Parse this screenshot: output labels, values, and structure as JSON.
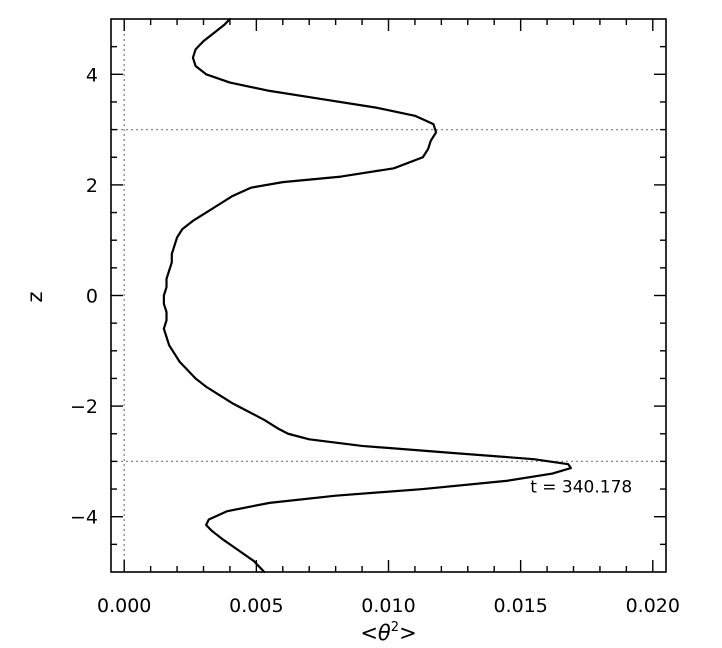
{
  "chart_data": {
    "type": "line",
    "xlabel": "<θ²>",
    "xlabel_parts": {
      "left": "<",
      "symbol": "θ",
      "sup": "2",
      "right": ">"
    },
    "ylabel": "z",
    "xlim": [
      -0.0005,
      0.0205
    ],
    "ylim": [
      -5,
      5
    ],
    "x_ticks": [
      0.0,
      0.005,
      0.01,
      0.015,
      0.02
    ],
    "x_tick_labels": [
      "0.000",
      "0.005",
      "0.010",
      "0.015",
      "0.020"
    ],
    "y_ticks": [
      -4,
      -2,
      0,
      2,
      4
    ],
    "y_tick_labels": [
      "−4",
      "−2",
      "0",
      "2",
      "4"
    ],
    "x_minor_step": 0.001,
    "y_minor_step": 0.5,
    "reference_lines": {
      "horizontal": [
        3,
        -3
      ],
      "vertical": [
        0
      ],
      "style": "dotted",
      "color": "#888888"
    },
    "annotation": {
      "text": "t = 340.178",
      "x": 0.0168,
      "y": -3.45
    },
    "grid": false,
    "series": [
      {
        "color": "#000000",
        "points": [
          [
            0.0053,
            -5.0
          ],
          [
            0.0049,
            -4.8
          ],
          [
            0.0043,
            -4.6
          ],
          [
            0.0037,
            -4.4
          ],
          [
            0.0033,
            -4.25
          ],
          [
            0.0031,
            -4.15
          ],
          [
            0.0032,
            -4.05
          ],
          [
            0.0039,
            -3.9
          ],
          [
            0.0055,
            -3.75
          ],
          [
            0.008,
            -3.62
          ],
          [
            0.0113,
            -3.5
          ],
          [
            0.0145,
            -3.35
          ],
          [
            0.0162,
            -3.22
          ],
          [
            0.0169,
            -3.12
          ],
          [
            0.0168,
            -3.05
          ],
          [
            0.0155,
            -2.96
          ],
          [
            0.0125,
            -2.85
          ],
          [
            0.009,
            -2.72
          ],
          [
            0.007,
            -2.6
          ],
          [
            0.0062,
            -2.5
          ],
          [
            0.0058,
            -2.4
          ],
          [
            0.0053,
            -2.25
          ],
          [
            0.0047,
            -2.1
          ],
          [
            0.0041,
            -1.95
          ],
          [
            0.0036,
            -1.8
          ],
          [
            0.0031,
            -1.65
          ],
          [
            0.0027,
            -1.5
          ],
          [
            0.0024,
            -1.35
          ],
          [
            0.0021,
            -1.2
          ],
          [
            0.0019,
            -1.05
          ],
          [
            0.0017,
            -0.9
          ],
          [
            0.0016,
            -0.75
          ],
          [
            0.0015,
            -0.6
          ],
          [
            0.0016,
            -0.45
          ],
          [
            0.0016,
            -0.3
          ],
          [
            0.0015,
            -0.15
          ],
          [
            0.0015,
            0.0
          ],
          [
            0.0016,
            0.15
          ],
          [
            0.0016,
            0.3
          ],
          [
            0.0017,
            0.45
          ],
          [
            0.0018,
            0.6
          ],
          [
            0.0018,
            0.75
          ],
          [
            0.0019,
            0.9
          ],
          [
            0.002,
            1.05
          ],
          [
            0.0022,
            1.2
          ],
          [
            0.0026,
            1.35
          ],
          [
            0.0031,
            1.5
          ],
          [
            0.0036,
            1.65
          ],
          [
            0.0041,
            1.8
          ],
          [
            0.0048,
            1.95
          ],
          [
            0.006,
            2.05
          ],
          [
            0.0082,
            2.15
          ],
          [
            0.0102,
            2.3
          ],
          [
            0.0113,
            2.5
          ],
          [
            0.0115,
            2.65
          ],
          [
            0.0116,
            2.8
          ],
          [
            0.0118,
            2.95
          ],
          [
            0.0117,
            3.1
          ],
          [
            0.011,
            3.25
          ],
          [
            0.0095,
            3.4
          ],
          [
            0.0075,
            3.55
          ],
          [
            0.0055,
            3.7
          ],
          [
            0.004,
            3.85
          ],
          [
            0.0031,
            4.0
          ],
          [
            0.0027,
            4.15
          ],
          [
            0.0026,
            4.3
          ],
          [
            0.0027,
            4.45
          ],
          [
            0.003,
            4.6
          ],
          [
            0.0034,
            4.75
          ],
          [
            0.0038,
            4.9
          ],
          [
            0.004,
            5.0
          ]
        ]
      }
    ]
  }
}
